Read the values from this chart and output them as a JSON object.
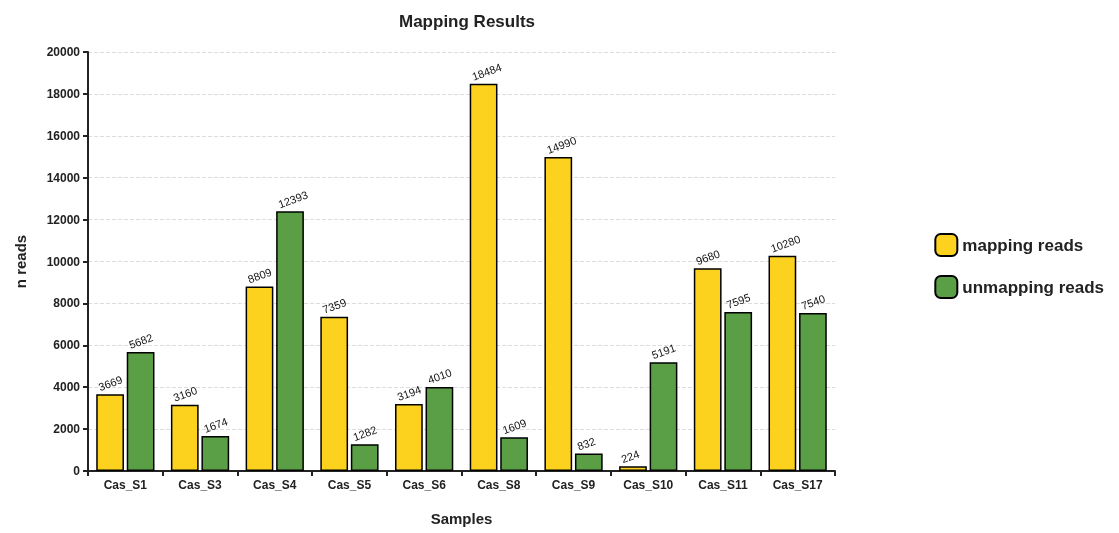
{
  "chart_data": {
    "type": "bar",
    "title": "Mapping Results",
    "xlabel": "Samples",
    "ylabel": "n reads",
    "categories": [
      "Cas_S1",
      "Cas_S3",
      "Cas_S4",
      "Cas_S5",
      "Cas_S6",
      "Cas_S8",
      "Cas_S9",
      "Cas_S10",
      "Cas_S11",
      "Cas_S17"
    ],
    "series": [
      {
        "name": "mapping reads",
        "color": "#fdd21f",
        "values": [
          3669,
          3160,
          8809,
          7359,
          3194,
          18484,
          14990,
          224,
          9680,
          10280
        ]
      },
      {
        "name": "unmapping reads",
        "color": "#5a9f45",
        "values": [
          5682,
          1674,
          12393,
          1282,
          4010,
          1609,
          832,
          5191,
          7595,
          7540
        ]
      }
    ],
    "ylim": [
      0,
      20000
    ],
    "yticks": [
      0,
      2000,
      4000,
      6000,
      8000,
      10000,
      12000,
      14000,
      16000,
      18000,
      20000
    ],
    "grid": "y",
    "legend": "right",
    "data_labels": true
  }
}
